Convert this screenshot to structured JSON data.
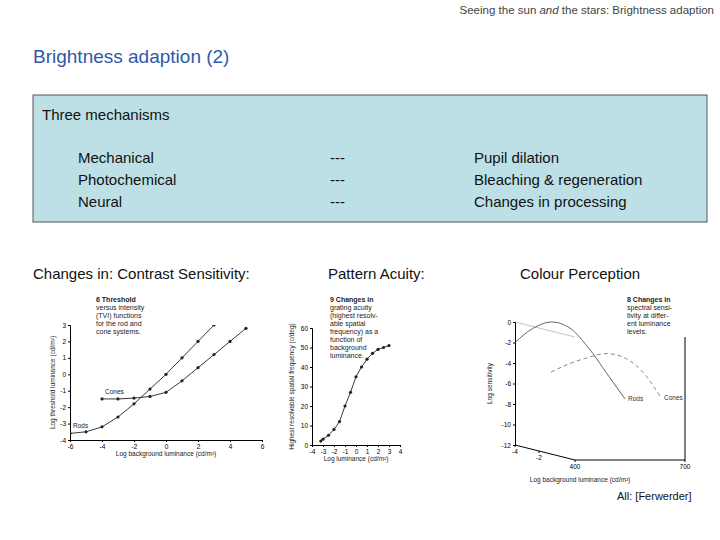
{
  "header": {
    "running_title": {
      "before": "Seeing the sun ",
      "emphasis": "and",
      "after": " the stars: Brightness adaption"
    }
  },
  "title": "Brightness adaption (2)",
  "mechanisms": {
    "heading": "Three mechanisms",
    "rows": [
      [
        "Mechanical",
        "---",
        "Pupil dilation"
      ],
      [
        "Photochemical",
        "---",
        "Bleaching & regeneration"
      ],
      [
        "Neural",
        "---",
        "Changes in processing"
      ]
    ]
  },
  "changes": {
    "lead": "Changes in: Contrast Sensitivity:",
    "labels": [
      "Pattern Acuity:",
      "Colour Perception"
    ]
  },
  "chart_data": [
    {
      "type": "line",
      "title": [
        "6 Threshold",
        "versus intensity",
        "(TVI) functions",
        "for the rod and",
        "cone systems."
      ],
      "x_label": "Log background luminance (cd/m²)",
      "y_label": "Log threshold luminance (cd/m²)",
      "xlim": [
        -6,
        6
      ],
      "xticks": [
        -6,
        -4,
        -2,
        0,
        2,
        4,
        6
      ],
      "ylim": [
        -4,
        3
      ],
      "yticks": [
        -4,
        -3,
        -2,
        -1,
        0,
        1,
        2,
        3
      ],
      "series": [
        {
          "name": "Cones",
          "color": "#222222",
          "marker": "circle",
          "line_style": "solid",
          "x": [
            -4,
            -3,
            -2,
            -1,
            0,
            1,
            2,
            3,
            4,
            5
          ],
          "values": [
            -1.5,
            -1.5,
            -1.45,
            -1.35,
            -1.1,
            -0.4,
            0.4,
            1.2,
            2.0,
            2.8
          ]
        },
        {
          "name": "Rods",
          "color": "#222222",
          "marker": "circle",
          "line_style": "solid",
          "x": [
            -6,
            -5,
            -4,
            -3,
            -2,
            -1,
            0,
            1,
            2,
            3
          ],
          "values": [
            -3.6,
            -3.5,
            -3.2,
            -2.6,
            -1.8,
            -0.9,
            0.0,
            1.0,
            2.0,
            3.0
          ]
        }
      ]
    },
    {
      "type": "line",
      "title": [
        "9 Changes in",
        "grating acuity",
        "(highest resolv-",
        "able spatial",
        "frequency) as a",
        "function of",
        "background",
        "luminance."
      ],
      "x_label": "Log luminance (cd/m²)",
      "y_label": "Highest resolvable spatial frequency (c/deg)",
      "xlim": [
        -4,
        4
      ],
      "xticks": [
        -4,
        -3,
        -2,
        -1,
        0,
        1,
        2,
        3,
        4
      ],
      "ylim": [
        0,
        60
      ],
      "yticks": [
        0,
        10,
        20,
        30,
        40,
        50,
        60
      ],
      "x": [
        -3.2,
        -3,
        -2.5,
        -2,
        -1.5,
        -1,
        -0.5,
        0,
        0.5,
        1,
        1.5,
        2,
        2.5,
        3
      ],
      "values": [
        2,
        3,
        5,
        8,
        12,
        20,
        27,
        35,
        40,
        44,
        47,
        49,
        50,
        51
      ],
      "color": "#222222",
      "marker": "circle",
      "line_style": "solid"
    },
    {
      "type": "line3d",
      "title": [
        "8 Changes in",
        "spectral sensi-",
        "tivity at differ-",
        "ent luminance",
        "levels."
      ],
      "y_label": "Log sensitivity",
      "z_label": "Log background luminance (cd/m²)",
      "x": [
        400,
        450,
        500,
        550,
        600,
        650,
        700
      ],
      "xlim": [
        400,
        700
      ],
      "xticks": [
        400,
        700
      ],
      "ylim": [
        -12,
        0
      ],
      "yticks": [
        0,
        -2,
        -4,
        -6,
        -8,
        -10,
        -12
      ],
      "zlim": [
        -4,
        1
      ],
      "zticks": [
        -4,
        -2
      ],
      "series": [
        {
          "name": "Rods",
          "color": "#666666",
          "line_style": "solid",
          "marker": "none",
          "luminance": -4,
          "values": [
            -2.0,
            -0.6,
            0,
            -0.6,
            -2.5,
            -5.0,
            -7.5
          ]
        },
        {
          "name": "Cones",
          "color": "#888888",
          "line_style": "dashed",
          "marker": "none",
          "luminance": -1,
          "values": [
            -4.0,
            -3.2,
            -2.6,
            -2.2,
            -2.6,
            -4.0,
            -6.5
          ]
        }
      ]
    }
  ],
  "credit": "All: [Ferwerder]"
}
